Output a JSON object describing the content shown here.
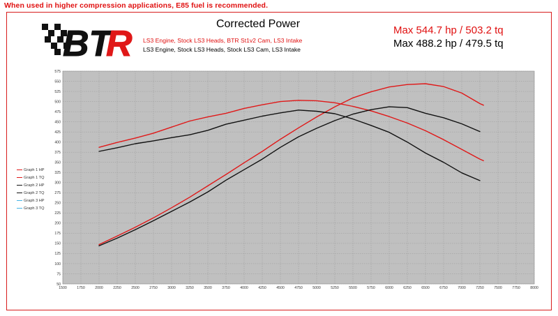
{
  "banner": {
    "text": "When used in higher compression applications, E85 fuel is recommended."
  },
  "logo": {
    "text": "BTR"
  },
  "header": {
    "title": "Corrected Power",
    "subtitle_1": "LS3 Engine, Stock LS3 Heads, BTR St1v2 Cam, LS3 Intake",
    "subtitle_2": "LS3 Engine, Stock LS3 Heads, Stock LS3 Cam, LS3 Intake",
    "max_1": "Max 544.7 hp / 503.2 tq",
    "max_2": "Max 488.2 hp / 479.5 tq"
  },
  "colors": {
    "graph1": "#e01818",
    "graph2": "#111111",
    "graph3": "#44b4e6",
    "plot_bg": "#c0c0c0",
    "border": "#d81c1c"
  },
  "legend": [
    {
      "label": "Graph 1 HP",
      "color": "#e01818"
    },
    {
      "label": "Graph 1 TQ",
      "color": "#e01818"
    },
    {
      "label": "Graph 2 HP",
      "color": "#111111"
    },
    {
      "label": "Graph 2 TQ",
      "color": "#111111"
    },
    {
      "label": "Graph 3 HP",
      "color": "#44b4e6"
    },
    {
      "label": "Graph 3 TQ",
      "color": "#44b4e6"
    }
  ],
  "chart_data": {
    "type": "line",
    "title": "Corrected Power",
    "xlim": [
      1500,
      8000
    ],
    "ylim": [
      50,
      575
    ],
    "x_ticks": [
      1500,
      1750,
      2000,
      2250,
      2500,
      2750,
      3000,
      3250,
      3500,
      3750,
      4000,
      4250,
      4500,
      4750,
      5000,
      5250,
      5500,
      5750,
      6000,
      6250,
      6500,
      6750,
      7000,
      7250,
      7500,
      7750,
      8000
    ],
    "y_ticks": [
      50,
      75,
      100,
      125,
      150,
      175,
      200,
      225,
      250,
      275,
      300,
      325,
      350,
      375,
      400,
      425,
      450,
      475,
      500,
      525,
      550,
      575
    ],
    "grid": true,
    "legend_position": "left",
    "series": [
      {
        "name": "Graph 1 HP",
        "color": "#e01818",
        "x": [
          2000,
          2250,
          2500,
          2750,
          3000,
          3250,
          3500,
          3750,
          4000,
          4250,
          4500,
          4750,
          5000,
          5250,
          5500,
          5750,
          6000,
          6250,
          6500,
          6750,
          7000,
          7250,
          7300
        ],
        "y": [
          147,
          168,
          190,
          213,
          238,
          264,
          292,
          320,
          349,
          377,
          407,
          435,
          462,
          487,
          509,
          524,
          536,
          542,
          544,
          537,
          521,
          495,
          491
        ]
      },
      {
        "name": "Graph 1 TQ",
        "color": "#e01818",
        "x": [
          2000,
          2250,
          2500,
          2750,
          3000,
          3250,
          3500,
          3750,
          4000,
          4250,
          4500,
          4750,
          5000,
          5250,
          5500,
          5750,
          6000,
          6250,
          6500,
          6750,
          7000,
          7250,
          7300
        ],
        "y": [
          387,
          399,
          410,
          422,
          437,
          452,
          462,
          471,
          483,
          492,
          500,
          503,
          502,
          497,
          488,
          477,
          463,
          447,
          428,
          406,
          382,
          358,
          354
        ]
      },
      {
        "name": "Graph 2 HP",
        "color": "#111111",
        "x": [
          2000,
          2250,
          2500,
          2750,
          3000,
          3250,
          3500,
          3750,
          4000,
          4250,
          4500,
          4750,
          5000,
          5250,
          5500,
          5750,
          6000,
          6250,
          6500,
          6750,
          7000,
          7250
        ],
        "y": [
          144,
          163,
          184,
          206,
          229,
          252,
          277,
          306,
          332,
          358,
          387,
          413,
          434,
          453,
          469,
          480,
          487,
          485,
          471,
          460,
          445,
          426
        ]
      },
      {
        "name": "Graph 2 TQ",
        "color": "#111111",
        "x": [
          2000,
          2250,
          2500,
          2750,
          3000,
          3250,
          3500,
          3750,
          4000,
          4250,
          4500,
          4750,
          5000,
          5250,
          5500,
          5750,
          6000,
          6250,
          6500,
          6750,
          7000,
          7250
        ],
        "y": [
          377,
          386,
          396,
          403,
          411,
          418,
          429,
          444,
          454,
          464,
          472,
          479,
          476,
          470,
          457,
          441,
          424,
          400,
          373,
          350,
          324,
          305
        ]
      }
    ]
  }
}
